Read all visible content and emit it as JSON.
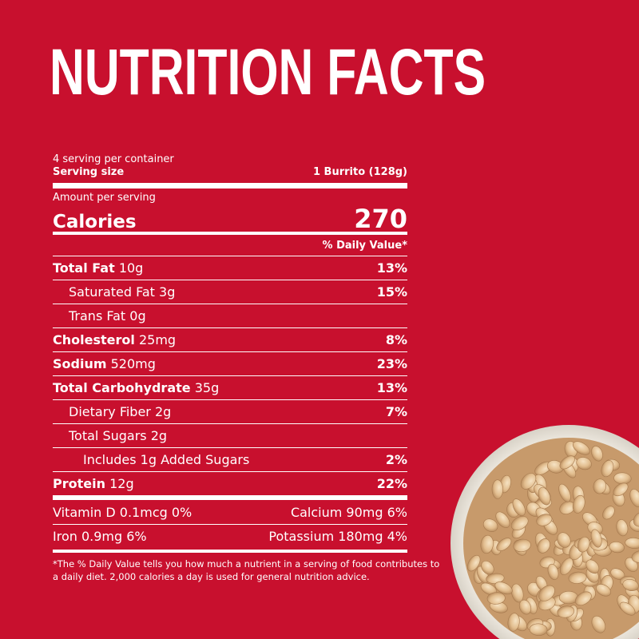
{
  "title": "NUTRITION FACTS",
  "servings": "4 serving per container",
  "serving_size_label": "Serving size",
  "serving_size_value": "1 Burrito (128g)",
  "amount_per_serving": "Amount per serving",
  "calories_label": "Calories",
  "calories_value": "270",
  "dv_header": "% Daily Value*",
  "nutrients": {
    "total_fat": {
      "name": "Total Fat",
      "amount": "10g",
      "dv": "13%"
    },
    "sat_fat": {
      "name": "Saturated Fat 3g",
      "dv": "15%"
    },
    "trans_fat": {
      "name": "Trans Fat 0g"
    },
    "cholesterol": {
      "name": "Cholesterol",
      "amount": "25mg",
      "dv": "8%"
    },
    "sodium": {
      "name": "Sodium",
      "amount": "520mg",
      "dv": "23%"
    },
    "carbs": {
      "name": "Total Carbohydrate",
      "amount": "35g",
      "dv": "13%"
    },
    "fiber": {
      "name": "Dietary Fiber 2g",
      "dv": "7%"
    },
    "sugars": {
      "name": "Total Sugars 2g"
    },
    "added_sugars": {
      "name": "Includes 1g Added Sugars",
      "dv": "2%"
    },
    "protein": {
      "name": "Protein",
      "amount": "12g",
      "dv": "22%"
    }
  },
  "vitamins": {
    "vitamin_d": "Vitamin D 0.1mcg 0%",
    "calcium": "Calcium 90mg 6%",
    "iron": "Iron 0.9mg 6%",
    "potassium": "Potassium 180mg 4%"
  },
  "footnote_1": "*The % Daily Value tells you how much a nutrient in a serving of food contributes to",
  "footnote_2": "a daily diet. 2,000 calories a day is used for general nutrition advice.",
  "colors": {
    "background": "#c8102e",
    "text": "#ffffff"
  }
}
